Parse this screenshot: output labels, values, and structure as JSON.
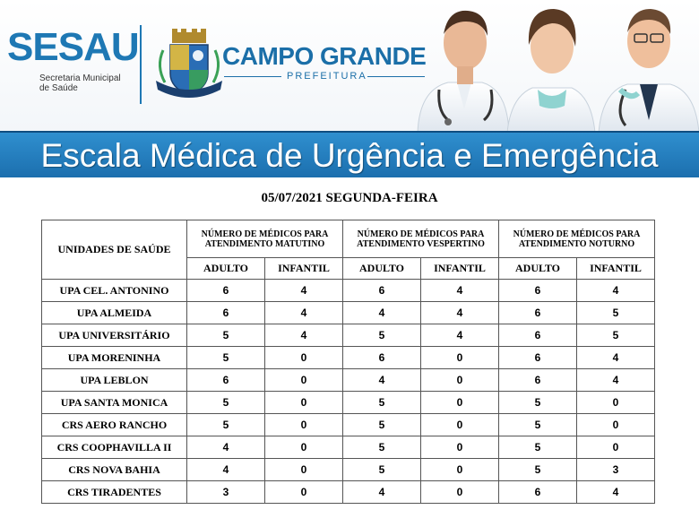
{
  "header": {
    "logo_title": "SESAU",
    "logo_subtitle_line1": "Secretaria Municipal",
    "logo_subtitle_line2": "de Saúde",
    "city_title": "CAMPO GRANDE",
    "city_subtitle": "PREFEITURA"
  },
  "banner": {
    "title": "Escala Médica de Urgência e Emergência"
  },
  "date_line": "05/07/2021 SEGUNDA-FEIRA",
  "table": {
    "unit_header": "UNIDADES DE SAÚDE",
    "groups": [
      "NÚMERO DE MÉDICOS PARA ATENDIMENTO MATUTINO",
      "NÚMERO DE MÉDICOS PARA ATENDIMENTO VESPERTINO",
      "NÚMERO DE MÉDICOS PARA ATENDIMENTO NOTURNO"
    ],
    "subheaders": [
      "ADULTO",
      "INFANTIL",
      "ADULTO",
      "INFANTIL",
      "ADULTO",
      "INFANTIL"
    ],
    "rows": [
      {
        "name": "UPA CEL. ANTONINO",
        "values": [
          "6",
          "4",
          "6",
          "4",
          "6",
          "4"
        ]
      },
      {
        "name": "UPA ALMEIDA",
        "values": [
          "6",
          "4",
          "4",
          "4",
          "6",
          "5"
        ]
      },
      {
        "name": "UPA UNIVERSITÁRIO",
        "values": [
          "5",
          "4",
          "5",
          "4",
          "6",
          "5"
        ]
      },
      {
        "name": "UPA MORENINHA",
        "values": [
          "5",
          "0",
          "6",
          "0",
          "6",
          "4"
        ]
      },
      {
        "name": "UPA LEBLON",
        "values": [
          "6",
          "0",
          "4",
          "0",
          "6",
          "4"
        ]
      },
      {
        "name": "UPA SANTA MONICA",
        "values": [
          "5",
          "0",
          "5",
          "0",
          "5",
          "0"
        ]
      },
      {
        "name": "CRS AERO RANCHO",
        "values": [
          "5",
          "0",
          "5",
          "0",
          "5",
          "0"
        ]
      },
      {
        "name": "CRS COOPHAVILLA II",
        "values": [
          "4",
          "0",
          "5",
          "0",
          "5",
          "0"
        ]
      },
      {
        "name": "CRS NOVA BAHIA",
        "values": [
          "4",
          "0",
          "5",
          "0",
          "5",
          "3"
        ]
      },
      {
        "name": "CRS TIRADENTES",
        "values": [
          "3",
          "0",
          "4",
          "0",
          "6",
          "4"
        ]
      }
    ]
  },
  "colors": {
    "brand_blue": "#1e78b4",
    "banner_blue": "#1c6fae",
    "banner_text": "#ffffff"
  }
}
